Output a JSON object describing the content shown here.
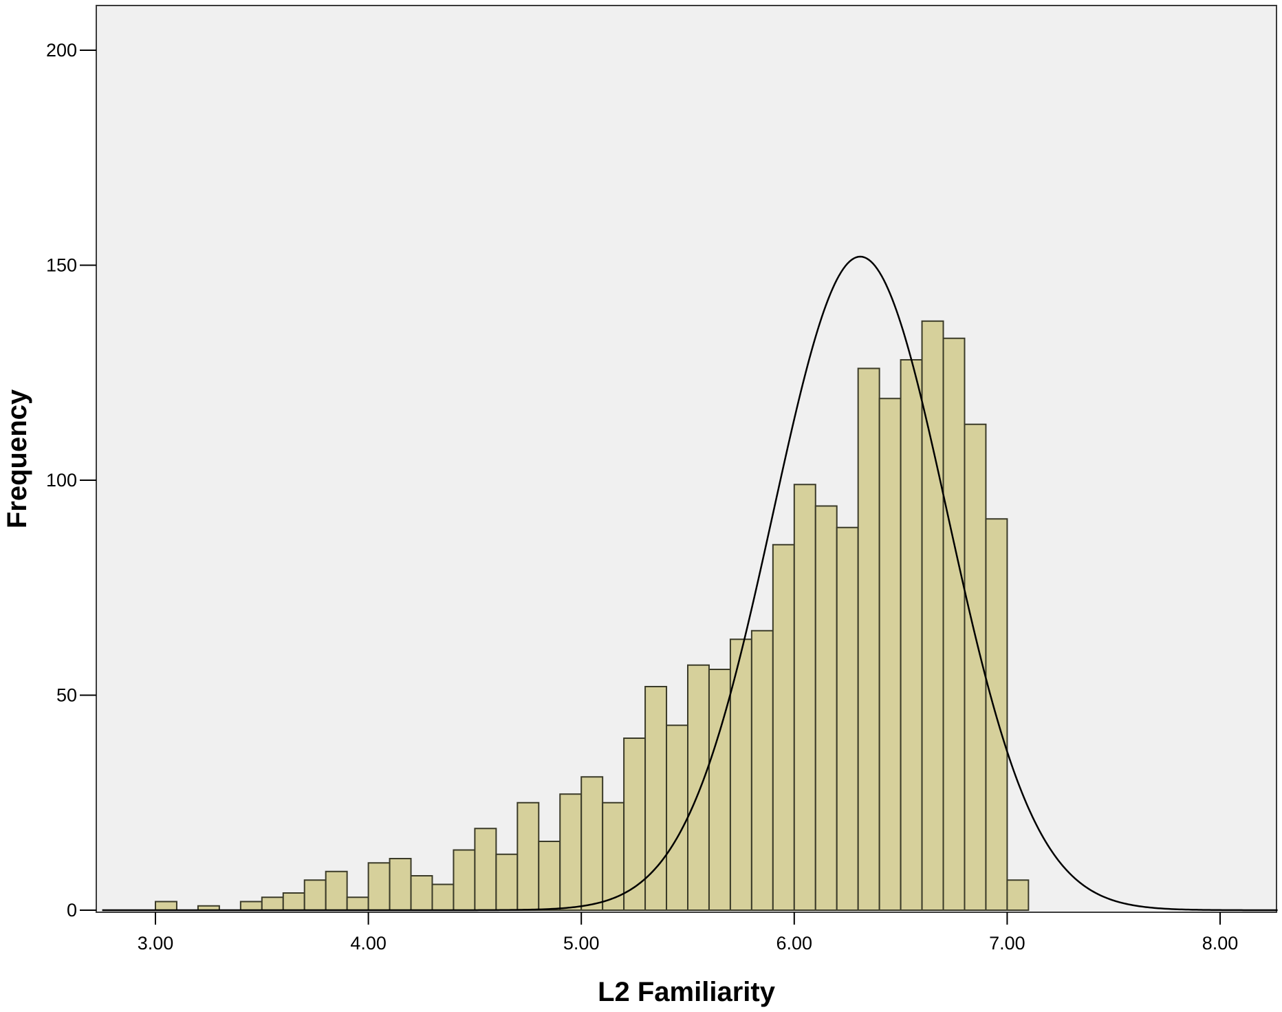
{
  "chart_data": {
    "type": "bar",
    "title": "",
    "xlabel": "L2 Familiarity",
    "ylabel": "Frequency",
    "xlim": [
      2.72,
      8.3
    ],
    "ylim": [
      0,
      200
    ],
    "x_ticks": [
      "3.00",
      "4.00",
      "5.00",
      "6.00",
      "7.00",
      "8.00"
    ],
    "x_tick_values": [
      3,
      4,
      5,
      6,
      7,
      8
    ],
    "y_ticks": [
      "0",
      "50",
      "100",
      "150",
      "200"
    ],
    "y_tick_values": [
      0,
      50,
      100,
      150,
      200
    ],
    "grid": false,
    "legend": "none",
    "bin_width": 0.1,
    "bins": [
      {
        "start": 3.0,
        "count": 2
      },
      {
        "start": 3.2,
        "count": 1
      },
      {
        "start": 3.4,
        "count": 2
      },
      {
        "start": 3.5,
        "count": 3
      },
      {
        "start": 3.6,
        "count": 4
      },
      {
        "start": 3.7,
        "count": 7
      },
      {
        "start": 3.8,
        "count": 9
      },
      {
        "start": 3.9,
        "count": 3
      },
      {
        "start": 4.0,
        "count": 11
      },
      {
        "start": 4.1,
        "count": 12
      },
      {
        "start": 4.2,
        "count": 8
      },
      {
        "start": 4.3,
        "count": 6
      },
      {
        "start": 4.4,
        "count": 14
      },
      {
        "start": 4.5,
        "count": 19
      },
      {
        "start": 4.6,
        "count": 13
      },
      {
        "start": 4.7,
        "count": 25
      },
      {
        "start": 4.8,
        "count": 16
      },
      {
        "start": 4.9,
        "count": 27
      },
      {
        "start": 5.0,
        "count": 31
      },
      {
        "start": 5.1,
        "count": 25
      },
      {
        "start": 5.2,
        "count": 40
      },
      {
        "start": 5.3,
        "count": 52
      },
      {
        "start": 5.4,
        "count": 43
      },
      {
        "start": 5.5,
        "count": 57
      },
      {
        "start": 5.6,
        "count": 56
      },
      {
        "start": 5.7,
        "count": 63
      },
      {
        "start": 5.8,
        "count": 65
      },
      {
        "start": 5.9,
        "count": 85
      },
      {
        "start": 6.0,
        "count": 99
      },
      {
        "start": 6.1,
        "count": 94
      },
      {
        "start": 6.2,
        "count": 89
      },
      {
        "start": 6.3,
        "count": 126
      },
      {
        "start": 6.4,
        "count": 119
      },
      {
        "start": 6.5,
        "count": 128
      },
      {
        "start": 6.6,
        "count": 137
      },
      {
        "start": 6.7,
        "count": 133
      },
      {
        "start": 6.8,
        "count": 113
      },
      {
        "start": 6.9,
        "count": 91
      },
      {
        "start": 7.0,
        "count": 7
      }
    ],
    "normal_curve": {
      "mean": 6.31,
      "sd": 0.41,
      "peak": 152
    },
    "colors": {
      "bar_fill": "#d6d09b",
      "bar_stroke": "#3a3a28",
      "plot_background": "#f0f0f0",
      "curve": "#000000",
      "axis": "#000000"
    }
  }
}
